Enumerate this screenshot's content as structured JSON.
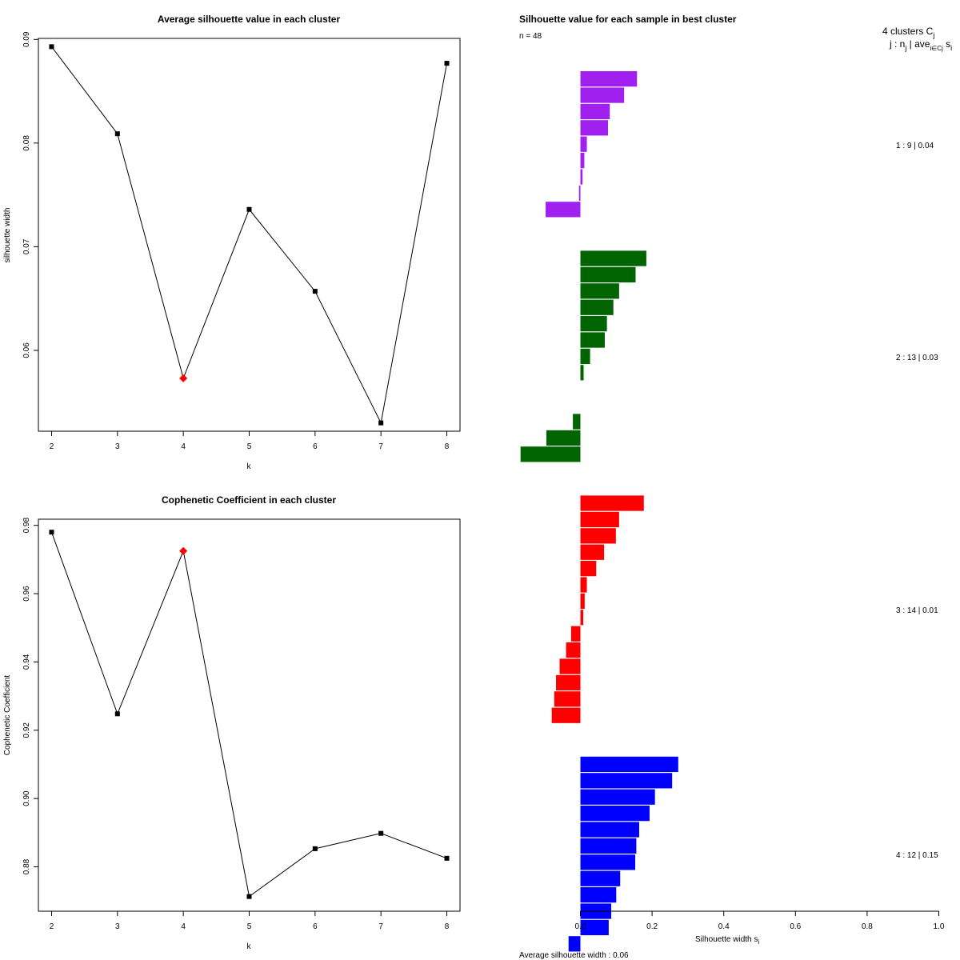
{
  "chart_data": [
    {
      "type": "line",
      "title": "Average silhouette value in each cluster",
      "xlabel": "k",
      "ylabel": "silhouette width",
      "x": [
        2,
        3,
        4,
        5,
        6,
        7,
        8
      ],
      "x_tick_labels": [
        "2",
        "3",
        "4",
        "5",
        "6",
        "7",
        "8"
      ],
      "values": [
        0.0893,
        0.0809,
        0.0573,
        0.0736,
        0.0657,
        0.053,
        0.0877
      ],
      "highlight_k": 4,
      "highlight_color": "#ff0000",
      "ylim": [
        0.0522,
        0.0901
      ],
      "y_ticks": [
        0.06,
        0.07,
        0.08,
        0.09
      ],
      "y_tick_labels": [
        "0.06",
        "0.07",
        "0.08",
        "0.09"
      ]
    },
    {
      "type": "line",
      "title": "Cophenetic Coefficient in each cluster",
      "xlabel": "k",
      "ylabel": "Cophenetic Coefficient",
      "x": [
        2,
        3,
        4,
        5,
        6,
        7,
        8
      ],
      "x_tick_labels": [
        "2",
        "3",
        "4",
        "5",
        "6",
        "7",
        "8"
      ],
      "values": [
        0.978,
        0.9248,
        0.9725,
        0.8713,
        0.8853,
        0.8898,
        0.8825
      ],
      "highlight_k": 4,
      "highlight_color": "#ff0000",
      "ylim": [
        0.867,
        0.9818
      ],
      "y_ticks": [
        0.88,
        0.9,
        0.92,
        0.94,
        0.96,
        0.98
      ],
      "y_tick_labels": [
        "0.88",
        "0.90",
        "0.92",
        "0.94",
        "0.96",
        "0.98"
      ]
    },
    {
      "type": "bar",
      "orientation": "horizontal",
      "title": "Silhouette value for each sample in best cluster",
      "n_label": "n = 48",
      "header_line1": "4  clusters  C",
      "header_line1_sub": "j",
      "header_line2": "j :  n",
      "header_line2_sub1": "j",
      "header_line2_mid": " | ave",
      "header_line2_sub2": "i∈Cj",
      "header_line2_end": "  s",
      "header_line2_sub3": "i",
      "xlabel": "Silhouette width  s",
      "xlabel_sub": "i",
      "xlim": [
        0.0,
        1.0
      ],
      "x_ticks": [
        0.0,
        0.2,
        0.4,
        0.6,
        0.8,
        1.0
      ],
      "x_tick_labels": [
        "0.0",
        "0.2",
        "0.4",
        "0.6",
        "0.8",
        "1.0"
      ],
      "average_label": "Average silhouette width :  0.06",
      "clusters": [
        {
          "label": "1 :   9  |  0.04",
          "color": "#a020f0",
          "values": [
            0.158,
            0.122,
            0.082,
            0.077,
            0.018,
            0.011,
            0.006,
            -0.004,
            -0.097
          ]
        },
        {
          "label": "2 :   13  |  0.03",
          "color": "#006400",
          "values": [
            0.184,
            0.154,
            0.108,
            0.092,
            0.074,
            0.068,
            0.027,
            0.009,
            0.0,
            0.0,
            -0.021,
            -0.095,
            -0.167
          ]
        },
        {
          "label": "3 :   14  |  0.01",
          "color": "#ff0000",
          "values": [
            0.177,
            0.108,
            0.099,
            0.066,
            0.044,
            0.018,
            0.012,
            0.008,
            -0.026,
            -0.04,
            -0.058,
            -0.068,
            -0.073,
            -0.08
          ]
        },
        {
          "label": "4 :   12  |  0.15",
          "color": "#0000ff",
          "values": [
            0.273,
            0.256,
            0.208,
            0.193,
            0.164,
            0.156,
            0.153,
            0.111,
            0.1,
            0.086,
            0.079,
            -0.033
          ]
        }
      ]
    }
  ]
}
